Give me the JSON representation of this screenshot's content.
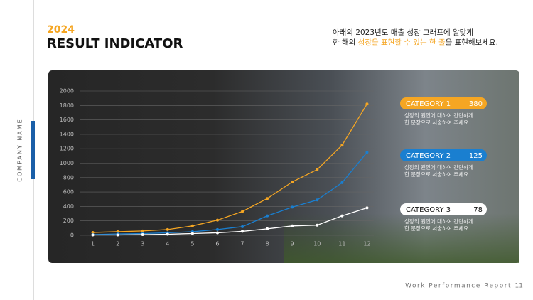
{
  "header": {
    "year": "2024",
    "title": "RESULT INDICATOR",
    "description": [
      [
        {
          "text": "아래의 2023년도 매출 성장 그래프에 알맞게",
          "highlight": false
        }
      ],
      [
        {
          "text": "한 해의 ",
          "highlight": false
        },
        {
          "text": "성장을 표현할 수 있는 한 줄",
          "highlight": true
        },
        {
          "text": "을 표현해보세요.",
          "highlight": false
        }
      ]
    ]
  },
  "sidebar": {
    "company": "COMPANY NAME"
  },
  "footer": {
    "report": "Work Performance Report",
    "page": 11
  },
  "chart_data": {
    "type": "line",
    "x": [
      1,
      2,
      3,
      4,
      5,
      6,
      7,
      8,
      9,
      10,
      11,
      12
    ],
    "xlim": [
      0.5,
      12.5
    ],
    "xticks": [
      1,
      2,
      3,
      4,
      5,
      6,
      7,
      8,
      9,
      10,
      11,
      12
    ],
    "ylim": [
      0,
      2000
    ],
    "yticks": [
      0,
      200,
      400,
      600,
      800,
      1000,
      1200,
      1400,
      1600,
      1800,
      2000
    ],
    "grid": true,
    "series": [
      {
        "name": "CATEGORY 1",
        "color": "#f5a623",
        "values": [
          40,
          50,
          60,
          80,
          130,
          210,
          330,
          510,
          740,
          910,
          1250,
          1820
        ]
      },
      {
        "name": "CATEGORY 2",
        "color": "#1a7fd0",
        "values": [
          10,
          20,
          25,
          35,
          50,
          80,
          120,
          270,
          390,
          490,
          730,
          1150
        ]
      },
      {
        "name": "CATEGORY 3",
        "color": "#ffffff",
        "values": [
          5,
          5,
          10,
          15,
          25,
          35,
          55,
          90,
          130,
          140,
          270,
          380
        ]
      }
    ],
    "callouts": [
      {
        "value": 380,
        "text": [
          "성장의 원인에 대하여 간단하게",
          "한 문장으로 서술하여 주세요."
        ]
      },
      {
        "value": 125,
        "text": [
          "성장의 원인에 대하여 간단하게",
          "한 문장으로 서술하여 주세요."
        ]
      },
      {
        "value": 78,
        "text": [
          "성장의 원인에 대하여 간단하게",
          "한 문장으로 서술하여 주세요."
        ]
      }
    ]
  }
}
